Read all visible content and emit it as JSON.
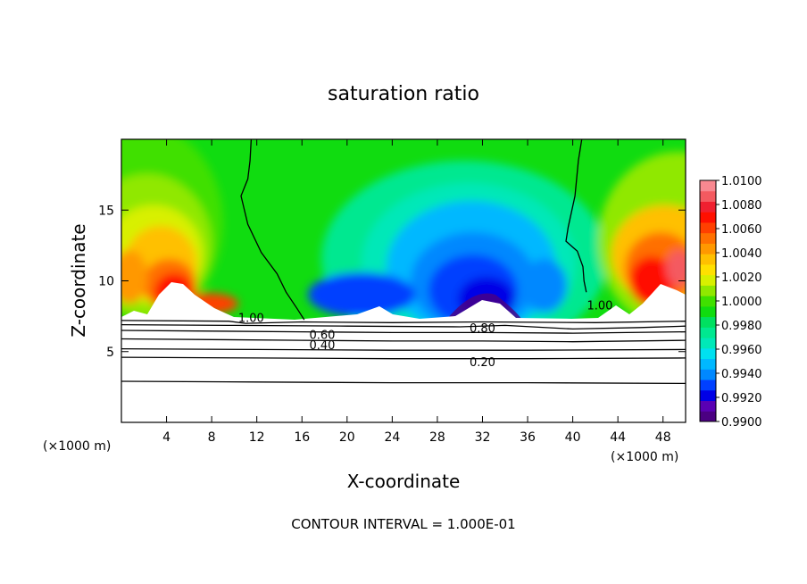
{
  "chart_data": {
    "type": "heatmap",
    "title": "saturation ratio",
    "xlabel": "X-coordinate",
    "ylabel": "Z-coordinate",
    "x_unit_left": "(×1000 m)",
    "x_unit_right": "(×1000 m)",
    "footer": "CONTOUR INTERVAL = 1.000E-01",
    "xlim": [
      0,
      50
    ],
    "ylim": [
      0,
      20
    ],
    "x_ticks": [
      4,
      8,
      12,
      16,
      20,
      24,
      28,
      32,
      36,
      40,
      44,
      48
    ],
    "y_ticks": [
      5,
      10,
      15
    ],
    "colorbar": {
      "min": 0.99,
      "max": 1.01,
      "labels": [
        "1.0100",
        "1.0080",
        "1.0060",
        "1.0040",
        "1.0020",
        "1.0000",
        "0.9980",
        "0.9960",
        "0.9940",
        "0.9920",
        "0.9900"
      ],
      "colors": [
        "#4b0082",
        "#5a00b4",
        "#0000e6",
        "#0040ff",
        "#0088ff",
        "#00b8ff",
        "#00e0f0",
        "#00e8b8",
        "#00e890",
        "#00e060",
        "#10dc10",
        "#40e000",
        "#90e800",
        "#d8f000",
        "#ffe000",
        "#ffc000",
        "#ff9800",
        "#ff7000",
        "#ff4000",
        "#ff1000",
        "#f02030",
        "#f45a60",
        "#f88890"
      ]
    },
    "surface_height": 7.2,
    "sampled_field": {
      "x": [
        0,
        4,
        8,
        12,
        16,
        20,
        24,
        28,
        32,
        36,
        40,
        44,
        48
      ],
      "z": [
        18,
        14,
        10.5
      ],
      "values": [
        [
          0.9994,
          1.0002,
          1.001,
          1.0006,
          1.0,
          0.9992,
          0.9984,
          0.9976,
          0.9968,
          0.9978,
          0.9994,
          1.0006,
          1.001
        ],
        [
          1.001,
          1.004,
          1.002,
          1.0,
          0.9982,
          0.996,
          0.995,
          0.994,
          0.9935,
          0.995,
          0.999,
          1.002,
          1.004
        ],
        [
          1.005,
          1.006,
          1.005,
          1.001,
          0.997,
          0.994,
          0.993,
          0.992,
          0.991,
          0.994,
          0.998,
          1.004,
          1.008
        ]
      ]
    },
    "contours": [
      {
        "label": "1.00",
        "label_x": 11.5,
        "label_z": 7.4,
        "points": [
          [
            11.5,
            20
          ],
          [
            11.4,
            18.5
          ],
          [
            11.2,
            17.2
          ],
          [
            10.6,
            16.0
          ],
          [
            11.2,
            14.0
          ],
          [
            12.4,
            12.0
          ],
          [
            13.8,
            10.5
          ],
          [
            14.6,
            9.2
          ],
          [
            15.6,
            8.0
          ],
          [
            16.2,
            7.25
          ]
        ]
      },
      {
        "label": "1.00",
        "label_x": 42.4,
        "label_z": 8.3,
        "points": [
          [
            40.8,
            20
          ],
          [
            40.5,
            18.5
          ],
          [
            40.2,
            16.0
          ],
          [
            39.6,
            13.8
          ],
          [
            39.4,
            12.8
          ],
          [
            40.4,
            12.1
          ],
          [
            40.9,
            11.0
          ],
          [
            41.0,
            10.0
          ],
          [
            41.2,
            9.2
          ]
        ]
      },
      {
        "label": "1.00",
        "label_x": null,
        "label_z": null,
        "points": [
          [
            0,
            7.2
          ],
          [
            9.5,
            7.15
          ],
          [
            11,
            7.0
          ],
          [
            16,
            7.1
          ],
          [
            24,
            7.05
          ],
          [
            32,
            7.1
          ],
          [
            42,
            7.05
          ],
          [
            50,
            7.15
          ]
        ]
      },
      {
        "label": "0.80",
        "label_x": 32.0,
        "label_z": 6.7,
        "points": [
          [
            0,
            6.9
          ],
          [
            10,
            6.85
          ],
          [
            20,
            6.8
          ],
          [
            30,
            6.75
          ],
          [
            34,
            6.85
          ],
          [
            40,
            6.6
          ],
          [
            46,
            6.7
          ],
          [
            50,
            6.8
          ]
        ]
      },
      {
        "label": "0.60",
        "label_x": 17.8,
        "label_z": 6.2,
        "points": [
          [
            0,
            6.5
          ],
          [
            8,
            6.45
          ],
          [
            16,
            6.4
          ],
          [
            24,
            6.35
          ],
          [
            32,
            6.35
          ],
          [
            40,
            6.3
          ],
          [
            50,
            6.4
          ]
        ]
      },
      {
        "label": "0.40",
        "label_x": 17.8,
        "label_z": 5.5,
        "points": [
          [
            0,
            5.9
          ],
          [
            8,
            5.85
          ],
          [
            16,
            5.8
          ],
          [
            24,
            5.75
          ],
          [
            32,
            5.75
          ],
          [
            40,
            5.7
          ],
          [
            50,
            5.8
          ]
        ]
      },
      {
        "label": "",
        "label_x": null,
        "label_z": null,
        "points": [
          [
            0,
            5.2
          ],
          [
            12,
            5.15
          ],
          [
            24,
            5.1
          ],
          [
            36,
            5.1
          ],
          [
            50,
            5.15
          ]
        ]
      },
      {
        "label": "0.20",
        "label_x": 32.0,
        "label_z": 4.3,
        "points": [
          [
            0,
            4.6
          ],
          [
            12,
            4.55
          ],
          [
            24,
            4.5
          ],
          [
            36,
            4.5
          ],
          [
            50,
            4.55
          ]
        ]
      },
      {
        "label": "",
        "label_x": null,
        "label_z": null,
        "points": [
          [
            0,
            2.9
          ],
          [
            12,
            2.85
          ],
          [
            24,
            2.8
          ],
          [
            36,
            2.8
          ],
          [
            50,
            2.75
          ]
        ]
      }
    ]
  }
}
